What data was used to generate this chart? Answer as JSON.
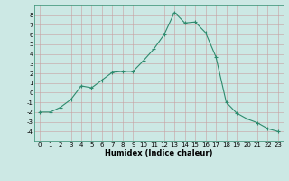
{
  "x": [
    0,
    1,
    2,
    3,
    4,
    5,
    6,
    7,
    8,
    9,
    10,
    11,
    12,
    13,
    14,
    15,
    16,
    17,
    18,
    19,
    20,
    21,
    22,
    23
  ],
  "y": [
    -2,
    -2,
    -1.5,
    -0.7,
    0.7,
    0.5,
    1.3,
    2.1,
    2.2,
    2.2,
    3.3,
    4.5,
    6.0,
    8.3,
    7.2,
    7.3,
    6.2,
    3.7,
    -1.0,
    -2.1,
    -2.7,
    -3.1,
    -3.7,
    -4.0
  ],
  "xlabel": "Humidex (Indice chaleur)",
  "line_color": "#2e8b6e",
  "marker": "+",
  "bg_color": "#cce8e4",
  "grid_major_color": "#c0d8d4",
  "grid_minor_color": "#d4ecec",
  "xlim": [
    -0.5,
    23.5
  ],
  "ylim": [
    -5.0,
    9.0
  ],
  "yticks": [
    -4,
    -3,
    -2,
    -1,
    0,
    1,
    2,
    3,
    4,
    5,
    6,
    7,
    8
  ],
  "xticks": [
    0,
    1,
    2,
    3,
    4,
    5,
    6,
    7,
    8,
    9,
    10,
    11,
    12,
    13,
    14,
    15,
    16,
    17,
    18,
    19,
    20,
    21,
    22,
    23
  ]
}
